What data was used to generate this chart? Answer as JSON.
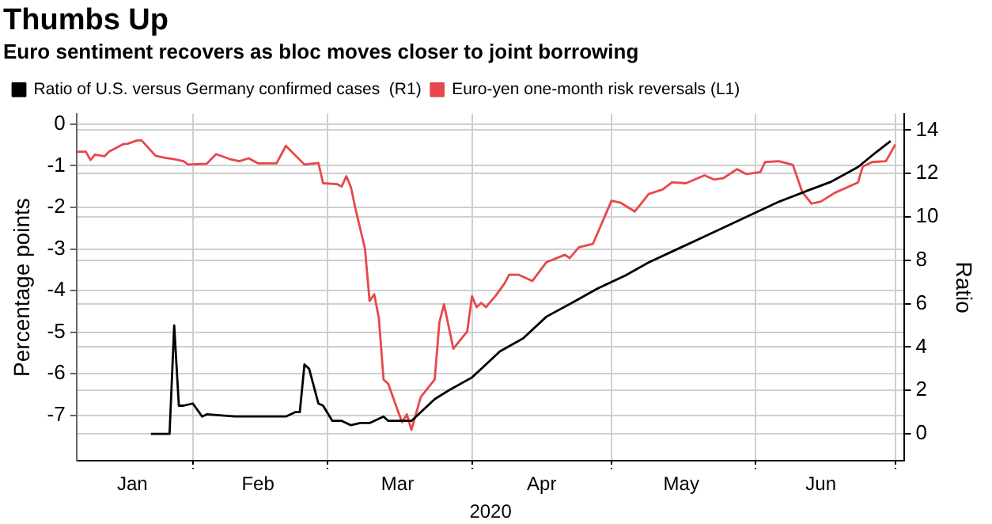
{
  "chart_data": {
    "type": "line",
    "title": "Thumbs Up",
    "subtitle": "Euro sentiment recovers as bloc moves closer to joint borrowing",
    "xlabel": "2020",
    "ylabel": "Percentage points",
    "y2label": "Ratio",
    "xlim": [
      "2020-01-07",
      "2020-07-03"
    ],
    "xticks": [
      {
        "value": "2020-01-19",
        "label": "Jan"
      },
      {
        "value": "2020-02-01",
        "label": null
      },
      {
        "value": "2020-02-15",
        "label": "Feb"
      },
      {
        "value": "2020-03-01",
        "label": null
      },
      {
        "value": "2020-03-16",
        "label": "Mar"
      },
      {
        "value": "2020-04-01",
        "label": null
      },
      {
        "value": "2020-04-16",
        "label": "Apr"
      },
      {
        "value": "2020-05-01",
        "label": null
      },
      {
        "value": "2020-05-16",
        "label": "May"
      },
      {
        "value": "2020-06-01",
        "label": null
      },
      {
        "value": "2020-06-15",
        "label": "Jun"
      },
      {
        "value": "2020-07-01",
        "label": null
      }
    ],
    "ylim": [
      -8.1,
      0.25
    ],
    "yticks": [
      0,
      -1,
      -2,
      -3,
      -4,
      -5,
      -6,
      -7
    ],
    "y2lim": [
      -1.25,
      14.75
    ],
    "y2ticks": [
      0,
      2,
      4,
      6,
      8,
      10,
      12,
      14
    ],
    "grid": true,
    "legend": "top left",
    "marker": "none",
    "line_style": "solid",
    "series": [
      {
        "name": "Ratio of U.S. versus Germany confirmed cases  (R1)",
        "color": "#000000",
        "axis": "y2",
        "x": [
          "2020-01-23",
          "2020-01-27",
          "2020-01-28",
          "2020-01-29",
          "2020-01-30",
          "2020-02-01",
          "2020-02-03",
          "2020-02-04",
          "2020-02-10",
          "2020-02-13",
          "2020-02-21",
          "2020-02-23",
          "2020-02-24",
          "2020-02-25",
          "2020-02-26",
          "2020-02-28",
          "2020-02-29",
          "2020-03-02",
          "2020-03-04",
          "2020-03-06",
          "2020-03-08",
          "2020-03-10",
          "2020-03-13",
          "2020-03-14",
          "2020-03-19",
          "2020-03-21",
          "2020-03-24",
          "2020-03-27",
          "2020-04-01",
          "2020-04-04",
          "2020-04-07",
          "2020-04-12",
          "2020-04-17",
          "2020-04-23",
          "2020-04-28",
          "2020-05-04",
          "2020-05-09",
          "2020-05-15",
          "2020-05-21",
          "2020-05-26",
          "2020-06-01",
          "2020-06-06",
          "2020-06-12",
          "2020-06-17",
          "2020-06-23",
          "2020-06-27",
          "2020-06-30"
        ],
        "values": [
          0,
          0,
          5,
          1.3,
          1.3,
          1.4,
          0.8,
          0.9,
          0.8,
          0.8,
          0.8,
          1,
          1,
          3.2,
          3,
          1.4,
          1.3,
          0.6,
          0.6,
          0.4,
          0.5,
          0.5,
          0.8,
          0.6,
          0.6,
          1,
          1.6,
          2,
          2.6,
          3.2,
          3.8,
          4.4,
          5.4,
          6.1,
          6.7,
          7.3,
          7.9,
          8.5,
          9.1,
          9.6,
          10.2,
          10.7,
          11.2,
          11.6,
          12.3,
          13,
          13.5
        ]
      },
      {
        "name": "Euro-yen one-month risk reversals (L1)",
        "color": "#e8474c",
        "axis": "y",
        "x": [
          "2020-01-07",
          "2020-01-09",
          "2020-01-10",
          "2020-01-11",
          "2020-01-13",
          "2020-01-14",
          "2020-01-17",
          "2020-01-18",
          "2020-01-20",
          "2020-01-21",
          "2020-01-24",
          "2020-01-26",
          "2020-01-28",
          "2020-01-30",
          "2020-01-31",
          "2020-02-04",
          "2020-02-06",
          "2020-02-09",
          "2020-02-11",
          "2020-02-13",
          "2020-02-15",
          "2020-02-19",
          "2020-02-21",
          "2020-02-25",
          "2020-02-28",
          "2020-02-29",
          "2020-03-03",
          "2020-03-04",
          "2020-03-05",
          "2020-03-06",
          "2020-03-07",
          "2020-03-09",
          "2020-03-10",
          "2020-03-11",
          "2020-03-12",
          "2020-03-13",
          "2020-03-14",
          "2020-03-16",
          "2020-03-17",
          "2020-03-18",
          "2020-03-19",
          "2020-03-21",
          "2020-03-24",
          "2020-03-25",
          "2020-03-26",
          "2020-03-28",
          "2020-03-31",
          "2020-04-01",
          "2020-04-02",
          "2020-04-03",
          "2020-04-04",
          "2020-04-06",
          "2020-04-08",
          "2020-04-09",
          "2020-04-11",
          "2020-04-14",
          "2020-04-17",
          "2020-04-21",
          "2020-04-22",
          "2020-04-24",
          "2020-04-27",
          "2020-05-01",
          "2020-05-03",
          "2020-05-06",
          "2020-05-09",
          "2020-05-12",
          "2020-05-14",
          "2020-05-17",
          "2020-05-21",
          "2020-05-23",
          "2020-05-25",
          "2020-05-28",
          "2020-05-30",
          "2020-06-02",
          "2020-06-03",
          "2020-06-06",
          "2020-06-09",
          "2020-06-11",
          "2020-06-13",
          "2020-06-15",
          "2020-06-18",
          "2020-06-21",
          "2020-06-23",
          "2020-06-24",
          "2020-06-26",
          "2020-06-29",
          "2020-07-01"
        ],
        "values": [
          -0.66,
          -0.66,
          -0.86,
          -0.73,
          -0.77,
          -0.66,
          -0.48,
          -0.47,
          -0.39,
          -0.39,
          -0.76,
          -0.81,
          -0.84,
          -0.89,
          -0.97,
          -0.95,
          -0.72,
          -0.84,
          -0.89,
          -0.82,
          -0.94,
          -0.94,
          -0.52,
          -0.97,
          -0.93,
          -1.42,
          -1.44,
          -1.5,
          -1.25,
          -1.52,
          -2.05,
          -2.99,
          -4.25,
          -4.09,
          -4.67,
          -6.14,
          -6.24,
          -6.87,
          -7.17,
          -6.98,
          -7.35,
          -6.56,
          -6.14,
          -4.77,
          -4.33,
          -5.4,
          -4.98,
          -4.14,
          -4.4,
          -4.3,
          -4.4,
          -4.14,
          -3.83,
          -3.62,
          -3.62,
          -3.77,
          -3.32,
          -3.14,
          -3.22,
          -2.96,
          -2.88,
          -1.84,
          -1.89,
          -2.1,
          -1.68,
          -1.57,
          -1.4,
          -1.42,
          -1.23,
          -1.33,
          -1.3,
          -1.08,
          -1.2,
          -1.15,
          -0.91,
          -0.89,
          -0.98,
          -1.63,
          -1.91,
          -1.86,
          -1.65,
          -1.5,
          -1.4,
          -1.02,
          -0.91,
          -0.89,
          -0.49
        ]
      }
    ]
  }
}
